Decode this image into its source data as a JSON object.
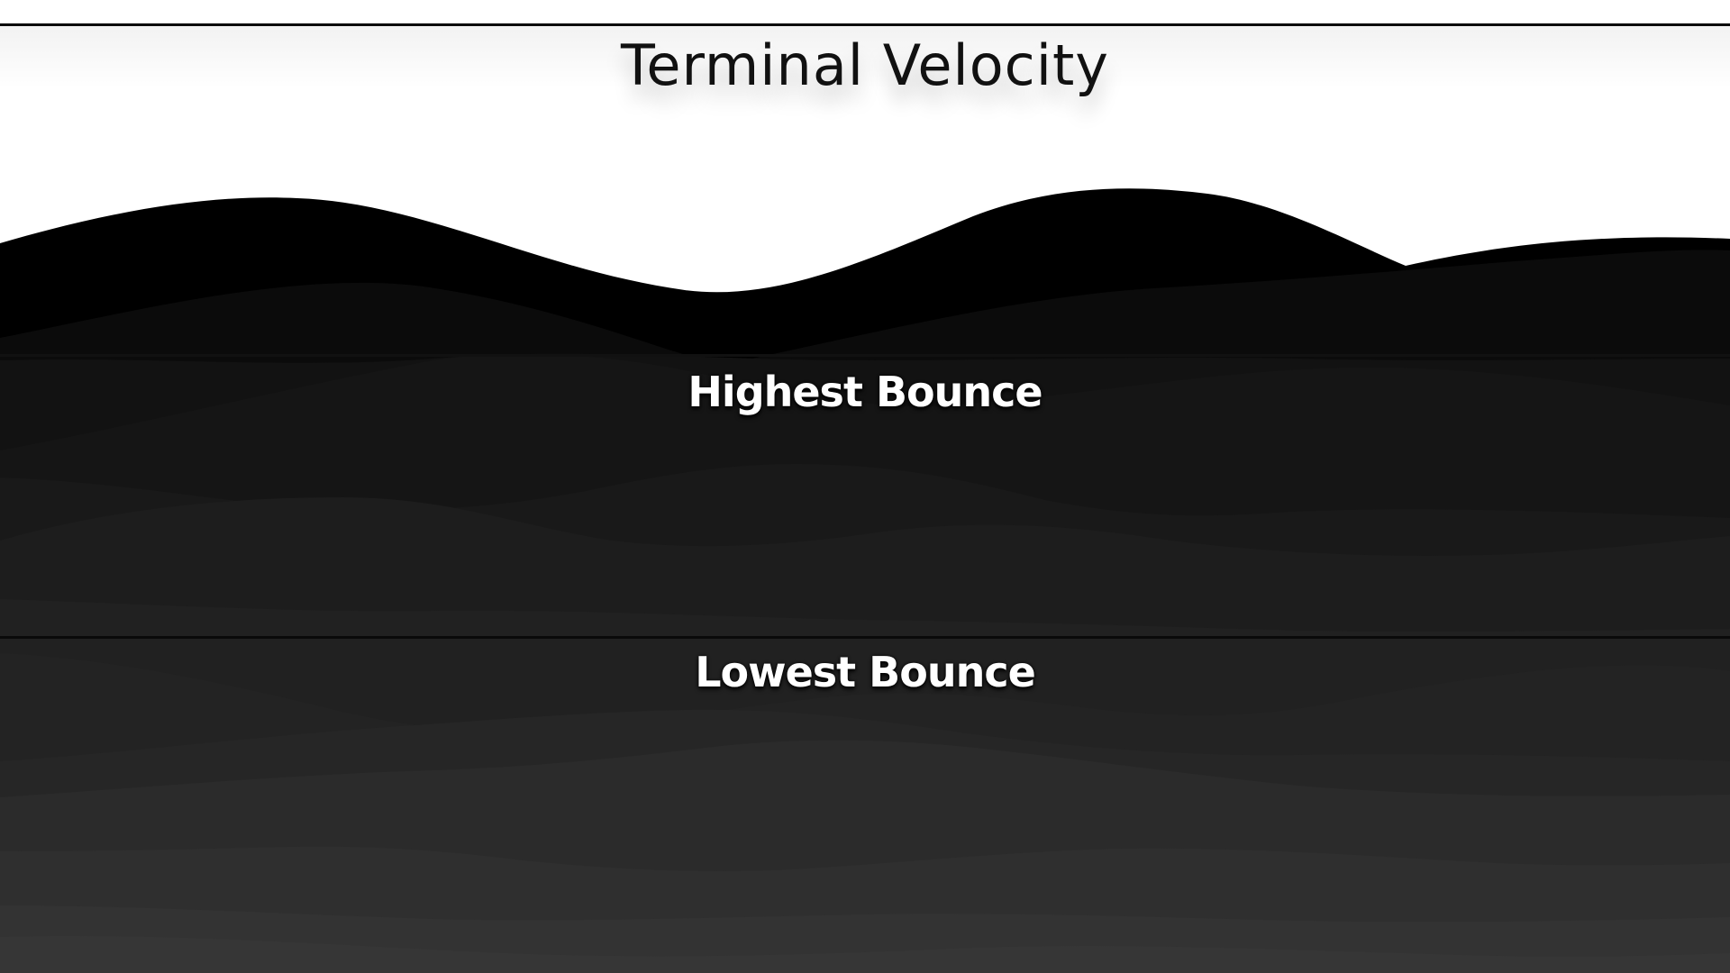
{
  "game": {
    "title": "Terminal Velocity"
  },
  "menu": {
    "options": [
      {
        "label": "Highest Bounce"
      },
      {
        "label": "Lowest Bounce"
      }
    ]
  },
  "colors": {
    "background": "#ffffff",
    "title_text": "#111111",
    "label_text": "#ffffff",
    "separator": "#0a0a0a",
    "wave_layers": [
      "#000000",
      "#0b0b0b",
      "#121212",
      "#171717",
      "#1c1c1c",
      "#202020",
      "#252525",
      "#2a2a2a",
      "#2e2e2e",
      "#323232",
      "#363636"
    ]
  }
}
